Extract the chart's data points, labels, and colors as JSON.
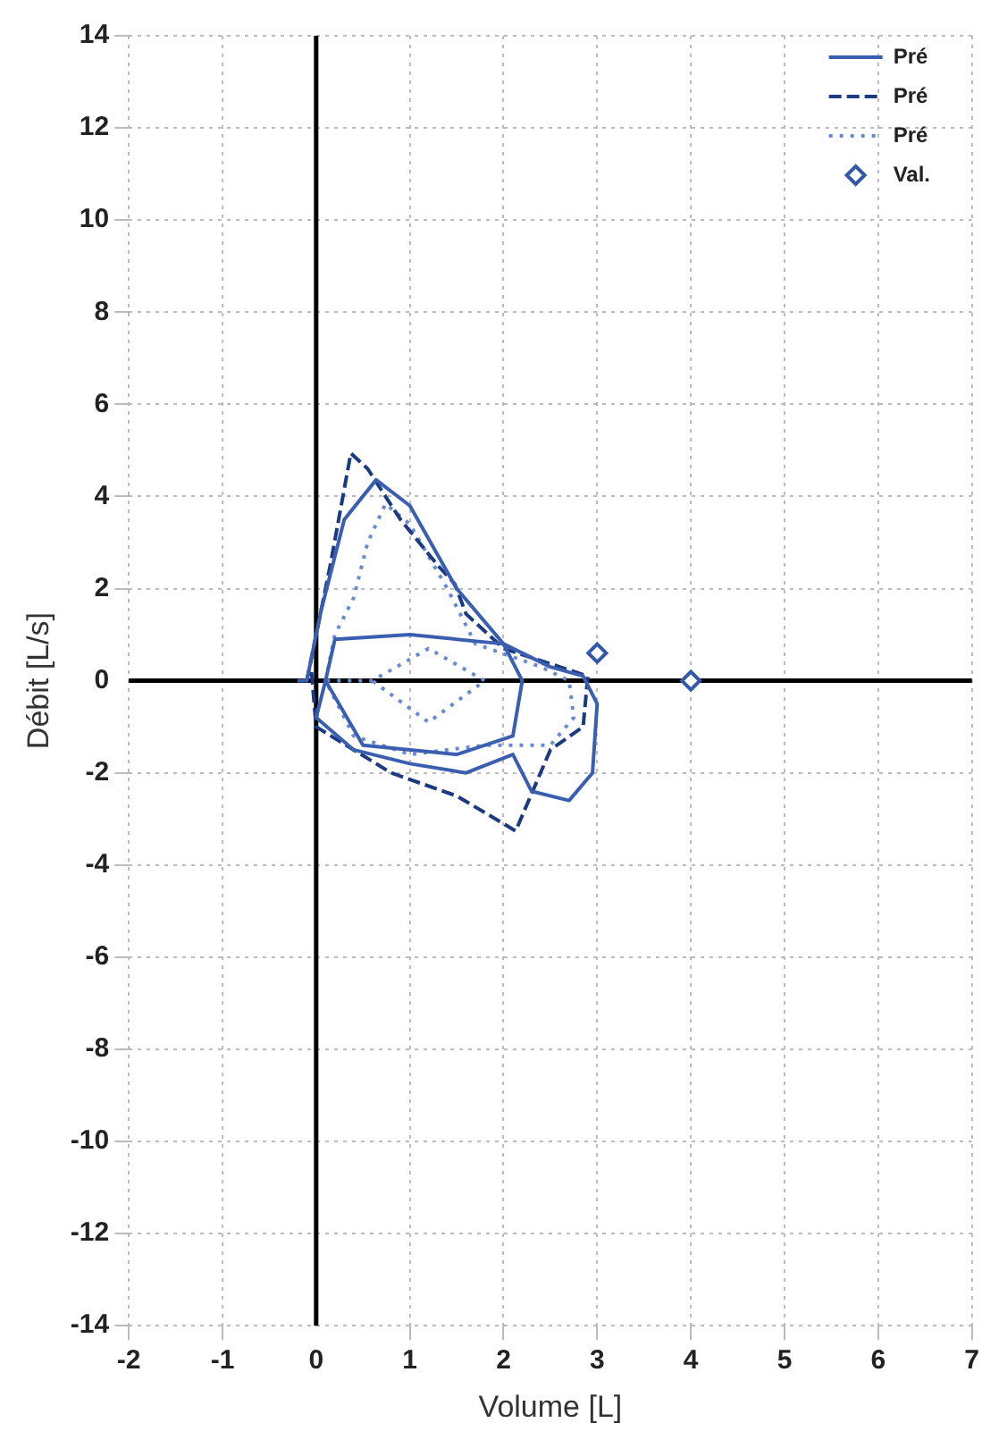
{
  "chart_data": {
    "type": "line",
    "xlabel": "Volume [L]",
    "ylabel": "Débit [L/s]",
    "xlim": [
      -2,
      7
    ],
    "xticks": [
      -2,
      -1,
      0,
      1,
      2,
      3,
      4,
      5,
      6,
      7
    ],
    "ylim": [
      -14,
      14
    ],
    "yticks": [
      -14,
      -12,
      -10,
      -8,
      -6,
      -4,
      -2,
      0,
      2,
      4,
      6,
      8,
      10,
      12,
      14
    ],
    "grid": true,
    "legend": "top right",
    "marker": "none",
    "series": [
      {
        "name": "Pré",
        "color": "#3a5fb0",
        "line_style": "solid",
        "x": [
          -0.2,
          -0.1,
          0.05,
          0.3,
          0.64,
          1.0,
          1.5,
          2.0,
          2.5,
          2.85,
          3.0,
          2.95,
          2.7,
          2.3,
          2.1,
          1.6,
          1.0,
          0.4,
          0.0,
          0.1,
          0.2,
          1.0,
          2.0,
          2.2,
          2.1,
          1.5,
          0.5,
          0.1
        ],
        "values": [
          0,
          0,
          1.5,
          3.5,
          4.36,
          3.8,
          2.0,
          0.8,
          0.3,
          0.1,
          -0.5,
          -2.0,
          -2.6,
          -2.4,
          -1.6,
          -2.0,
          -1.8,
          -1.5,
          -0.8,
          0,
          0.9,
          1.0,
          0.8,
          0,
          -1.2,
          -1.6,
          -1.4,
          0
        ]
      },
      {
        "name": "Pré",
        "color": "#1c3a80",
        "line_style": "dashed",
        "x": [
          -0.1,
          0.15,
          0.37,
          0.55,
          0.9,
          1.3,
          1.48,
          1.6,
          2.0,
          2.9,
          2.85,
          2.5,
          2.13,
          1.5,
          0.8,
          0.0,
          -0.05
        ],
        "values": [
          0,
          2.5,
          4.94,
          4.6,
          3.5,
          2.5,
          2.1,
          1.45,
          0.7,
          0.1,
          -1.0,
          -1.5,
          -3.26,
          -2.5,
          -2.0,
          -1.0,
          0.2
        ]
      },
      {
        "name": "Pré",
        "color": "#6a8ad0",
        "line_style": "dotted",
        "x": [
          0.1,
          0.2,
          0.4,
          0.55,
          0.74,
          1.0,
          1.4,
          1.7,
          2.4,
          2.7,
          2.75,
          2.5,
          1.8,
          1.0,
          0.4,
          0.1,
          0.6,
          1.2,
          1.8,
          1.2,
          0.6
        ],
        "values": [
          0,
          1.0,
          1.8,
          3.0,
          3.84,
          3.4,
          2.0,
          0.8,
          0.3,
          0,
          -0.8,
          -1.4,
          -1.4,
          -1.6,
          -1.2,
          0,
          0,
          0.7,
          0,
          -0.9,
          0
        ]
      },
      {
        "name": "Val.",
        "type": "scatter",
        "color": "#3458a8",
        "marker": "diamond",
        "x": [
          3.0,
          4.0
        ],
        "values": [
          0.6,
          0
        ]
      }
    ]
  }
}
